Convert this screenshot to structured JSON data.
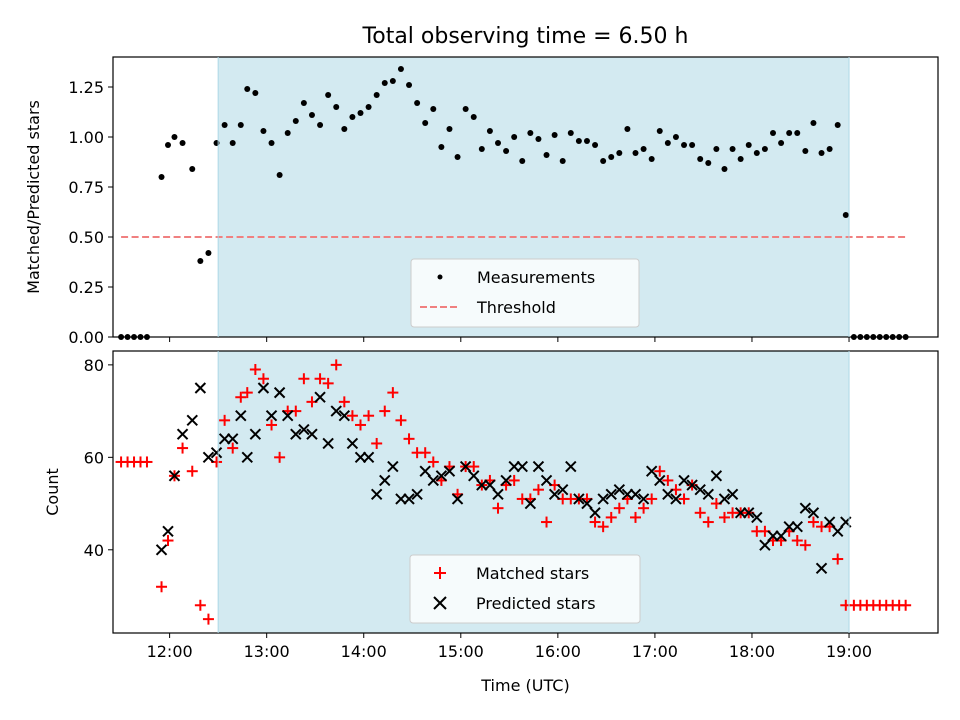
{
  "chart_data": [
    {
      "type": "scatter",
      "title": "Total observing time = 6.50 h",
      "xlabel": "",
      "ylabel": "Matched/Predicted stars",
      "xlim": [
        "11:25",
        "19:55"
      ],
      "ylim": [
        0,
        1.4
      ],
      "yticks": [
        0.0,
        0.25,
        0.5,
        0.75,
        1.0,
        1.25
      ],
      "ytick_labels": [
        "0.00",
        "0.25",
        "0.50",
        "0.75",
        "1.00",
        "1.25"
      ],
      "xticks": [
        "12:00",
        "13:00",
        "14:00",
        "15:00",
        "16:00",
        "17:00",
        "18:00",
        "19:00"
      ],
      "shaded_region": {
        "start": "12:30",
        "end": "19:00",
        "color": "#d3eaf1"
      },
      "grid": false,
      "legend_position": "bottom-center",
      "series": [
        {
          "name": "Measurements",
          "marker": "dot",
          "color": "#000000",
          "x": [
            "11:30",
            "11:34",
            "11:38",
            "11:42",
            "11:46",
            "11:55",
            "11:59",
            "12:03",
            "12:08",
            "12:14",
            "12:19",
            "12:24",
            "12:29",
            "12:34",
            "12:39",
            "12:44",
            "12:48",
            "12:53",
            "12:58",
            "13:03",
            "13:08",
            "13:13",
            "13:18",
            "13:23",
            "13:28",
            "13:33",
            "13:38",
            "13:43",
            "13:48",
            "13:53",
            "13:58",
            "14:03",
            "14:08",
            "14:13",
            "14:18",
            "14:23",
            "14:28",
            "14:33",
            "14:38",
            "14:43",
            "14:48",
            "14:53",
            "14:58",
            "15:03",
            "15:08",
            "15:13",
            "15:18",
            "15:23",
            "15:28",
            "15:33",
            "15:38",
            "15:43",
            "15:48",
            "15:53",
            "15:58",
            "16:03",
            "16:08",
            "16:13",
            "16:18",
            "16:23",
            "16:28",
            "16:33",
            "16:38",
            "16:43",
            "16:48",
            "16:53",
            "16:58",
            "17:03",
            "17:08",
            "17:13",
            "17:18",
            "17:23",
            "17:28",
            "17:33",
            "17:38",
            "17:43",
            "17:48",
            "17:53",
            "17:58",
            "18:03",
            "18:08",
            "18:13",
            "18:18",
            "18:23",
            "18:28",
            "18:33",
            "18:38",
            "18:43",
            "18:48",
            "18:53",
            "18:58",
            "19:03",
            "19:07",
            "19:11",
            "19:15",
            "19:19",
            "19:23",
            "19:27",
            "19:31",
            "19:35"
          ],
          "y": [
            0.0,
            0.0,
            0.0,
            0.0,
            0.0,
            0.8,
            0.96,
            1.0,
            0.97,
            0.84,
            0.38,
            0.42,
            0.97,
            1.06,
            0.97,
            1.06,
            1.24,
            1.22,
            1.03,
            0.97,
            0.81,
            1.02,
            1.08,
            1.17,
            1.11,
            1.06,
            1.21,
            1.15,
            1.04,
            1.1,
            1.12,
            1.15,
            1.21,
            1.27,
            1.28,
            1.34,
            1.26,
            1.17,
            1.07,
            1.14,
            0.95,
            1.04,
            0.9,
            1.14,
            1.1,
            0.94,
            1.03,
            0.97,
            0.93,
            1.0,
            0.88,
            1.02,
            0.99,
            0.91,
            1.01,
            0.88,
            1.02,
            0.98,
            0.98,
            0.96,
            0.88,
            0.9,
            0.92,
            1.04,
            0.92,
            0.94,
            0.89,
            1.03,
            0.97,
            1.0,
            0.96,
            0.96,
            0.89,
            0.87,
            0.94,
            0.84,
            0.94,
            0.89,
            0.96,
            0.92,
            0.94,
            1.02,
            0.97,
            1.02,
            1.02,
            0.93,
            1.07,
            0.92,
            0.94,
            1.06,
            0.61,
            0.0,
            0.0,
            0.0,
            0.0,
            0.0,
            0.0,
            0.0,
            0.0,
            0.0
          ]
        },
        {
          "name": "Threshold",
          "marker": "dashed-line",
          "color": "#f08080",
          "x": [
            "11:30",
            "19:35"
          ],
          "y": [
            0.5,
            0.5
          ]
        }
      ]
    },
    {
      "type": "scatter",
      "title": "",
      "xlabel": "Time (UTC)",
      "ylabel": "Count",
      "xlim": [
        "11:25",
        "19:55"
      ],
      "ylim": [
        22,
        83
      ],
      "yticks": [
        40,
        60,
        80
      ],
      "ytick_labels": [
        "40",
        "60",
        "80"
      ],
      "xticks": [
        "12:00",
        "13:00",
        "14:00",
        "15:00",
        "16:00",
        "17:00",
        "18:00",
        "19:00"
      ],
      "shaded_region": {
        "start": "12:30",
        "end": "19:00",
        "color": "#d3eaf1"
      },
      "grid": false,
      "legend_position": "bottom-center",
      "series": [
        {
          "name": "Matched stars",
          "marker": "plus",
          "color": "#ff0000",
          "x": [
            "11:30",
            "11:34",
            "11:38",
            "11:42",
            "11:46",
            "11:55",
            "11:59",
            "12:03",
            "12:08",
            "12:14",
            "12:19",
            "12:24",
            "12:29",
            "12:34",
            "12:39",
            "12:44",
            "12:48",
            "12:53",
            "12:58",
            "13:03",
            "13:08",
            "13:13",
            "13:18",
            "13:23",
            "13:28",
            "13:33",
            "13:38",
            "13:43",
            "13:48",
            "13:53",
            "13:58",
            "14:03",
            "14:08",
            "14:13",
            "14:18",
            "14:23",
            "14:28",
            "14:33",
            "14:38",
            "14:43",
            "14:48",
            "14:53",
            "14:58",
            "15:03",
            "15:08",
            "15:13",
            "15:18",
            "15:23",
            "15:28",
            "15:33",
            "15:38",
            "15:43",
            "15:48",
            "15:53",
            "15:58",
            "16:03",
            "16:08",
            "16:13",
            "16:18",
            "16:23",
            "16:28",
            "16:33",
            "16:38",
            "16:43",
            "16:48",
            "16:53",
            "16:58",
            "17:03",
            "17:08",
            "17:13",
            "17:18",
            "17:23",
            "17:28",
            "17:33",
            "17:38",
            "17:43",
            "17:48",
            "17:53",
            "17:58",
            "18:03",
            "18:08",
            "18:13",
            "18:18",
            "18:23",
            "18:28",
            "18:33",
            "18:38",
            "18:43",
            "18:48",
            "18:53",
            "18:58",
            "19:03",
            "19:07",
            "19:11",
            "19:15",
            "19:19",
            "19:23",
            "19:27",
            "19:31",
            "19:35"
          ],
          "y": [
            59,
            59,
            59,
            59,
            59,
            32,
            42,
            56,
            62,
            57,
            28,
            25,
            59,
            68,
            62,
            73,
            74,
            79,
            77,
            67,
            60,
            70,
            70,
            77,
            72,
            77,
            76,
            80,
            72,
            69,
            67,
            69,
            63,
            70,
            74,
            68,
            64,
            61,
            61,
            59,
            55,
            58,
            52,
            58,
            58,
            54,
            55,
            49,
            54,
            55,
            51,
            51,
            53,
            46,
            54,
            51,
            51,
            51,
            51,
            46,
            45,
            47,
            49,
            51,
            47,
            49,
            51,
            57,
            55,
            53,
            51,
            54,
            48,
            46,
            50,
            47,
            48,
            48,
            48,
            44,
            44,
            42,
            42,
            44,
            42,
            41,
            46,
            45,
            45,
            38,
            28,
            28,
            28,
            28,
            28,
            28,
            28,
            28,
            28,
            28
          ]
        },
        {
          "name": "Predicted stars",
          "marker": "x",
          "color": "#000000",
          "x": [
            "11:55",
            "11:59",
            "12:03",
            "12:08",
            "12:14",
            "12:19",
            "12:24",
            "12:29",
            "12:34",
            "12:39",
            "12:44",
            "12:48",
            "12:53",
            "12:58",
            "13:03",
            "13:08",
            "13:13",
            "13:18",
            "13:23",
            "13:28",
            "13:33",
            "13:38",
            "13:43",
            "13:48",
            "13:53",
            "13:58",
            "14:03",
            "14:08",
            "14:13",
            "14:18",
            "14:23",
            "14:28",
            "14:33",
            "14:38",
            "14:43",
            "14:48",
            "14:53",
            "14:58",
            "15:03",
            "15:08",
            "15:13",
            "15:18",
            "15:23",
            "15:28",
            "15:33",
            "15:38",
            "15:43",
            "15:48",
            "15:53",
            "15:58",
            "16:03",
            "16:08",
            "16:13",
            "16:18",
            "16:23",
            "16:28",
            "16:33",
            "16:38",
            "16:43",
            "16:48",
            "16:53",
            "16:58",
            "17:03",
            "17:08",
            "17:13",
            "17:18",
            "17:23",
            "17:28",
            "17:33",
            "17:38",
            "17:43",
            "17:48",
            "17:53",
            "17:58",
            "18:03",
            "18:08",
            "18:13",
            "18:18",
            "18:23",
            "18:28",
            "18:33",
            "18:38",
            "18:43",
            "18:48",
            "18:53",
            "18:58"
          ],
          "y": [
            40,
            44,
            56,
            65,
            68,
            75,
            60,
            61,
            64,
            64,
            69,
            60,
            65,
            75,
            69,
            74,
            69,
            65,
            66,
            65,
            73,
            63,
            70,
            69,
            63,
            60,
            60,
            52,
            55,
            58,
            51,
            51,
            52,
            57,
            55,
            56,
            57,
            51,
            58,
            56,
            54,
            54,
            52,
            55,
            58,
            58,
            50,
            58,
            55,
            52,
            53,
            58,
            51,
            50,
            48,
            51,
            52,
            53,
            52,
            52,
            51,
            57,
            55,
            52,
            51,
            55,
            54,
            53,
            52,
            56,
            51,
            52,
            48,
            48,
            47,
            41,
            43,
            43,
            45,
            45,
            49,
            48,
            36,
            46,
            44,
            46
          ]
        }
      ]
    }
  ]
}
